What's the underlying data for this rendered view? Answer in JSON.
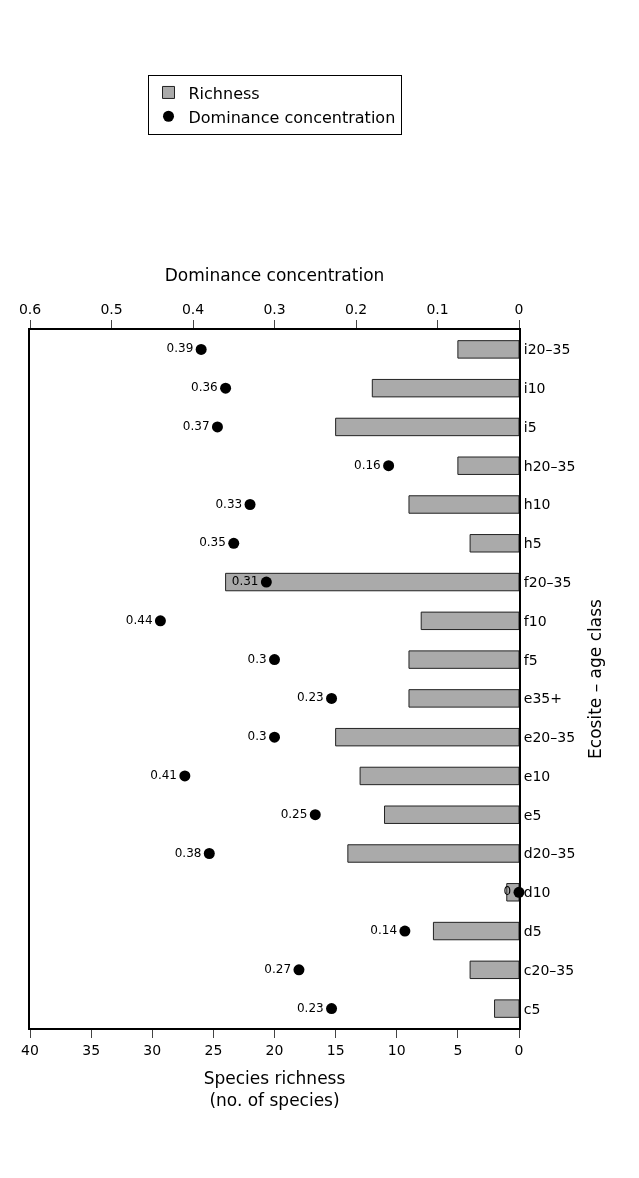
{
  "chart_data": {
    "type": "bar",
    "orientation": "horizontal",
    "categories": [
      "i20–35",
      "i10",
      "i5",
      "h20–35",
      "h10",
      "h5",
      "f20–35",
      "f10",
      "f5",
      "e35+",
      "e20–35",
      "e10",
      "e5",
      "d20–35",
      "d10",
      "d5",
      "c20–35",
      "c5"
    ],
    "series": [
      {
        "name": "Richness",
        "color": "#aaaaaa",
        "values": [
          5,
          12,
          15,
          5,
          9,
          4,
          24,
          8,
          9,
          9,
          15,
          13,
          11,
          14,
          1,
          7,
          4,
          2
        ]
      },
      {
        "name": "Dominance concentration",
        "type": "scatter",
        "axis": "x2",
        "color": "#000000",
        "marker": "circle",
        "data_labels": true,
        "values": [
          0.39,
          0.36,
          0.37,
          0.16,
          0.33,
          0.35,
          0.31,
          0.44,
          0.3,
          0.23,
          0.3,
          0.41,
          0.25,
          0.38,
          0,
          0.14,
          0.27,
          0.23
        ]
      }
    ],
    "xlabel": "Species richness\n(no. of species)",
    "x2label": "Dominance concentration",
    "ylabel": "Ecosite – age class",
    "xlim": [
      40,
      0
    ],
    "xticks": [
      0,
      5,
      10,
      15,
      20,
      25,
      30,
      35,
      40
    ],
    "x2lim": [
      0.6,
      0
    ],
    "x2ticks": [
      0,
      0.1,
      0.2,
      0.3,
      0.4,
      0.5,
      0.6
    ],
    "legend": "top"
  }
}
